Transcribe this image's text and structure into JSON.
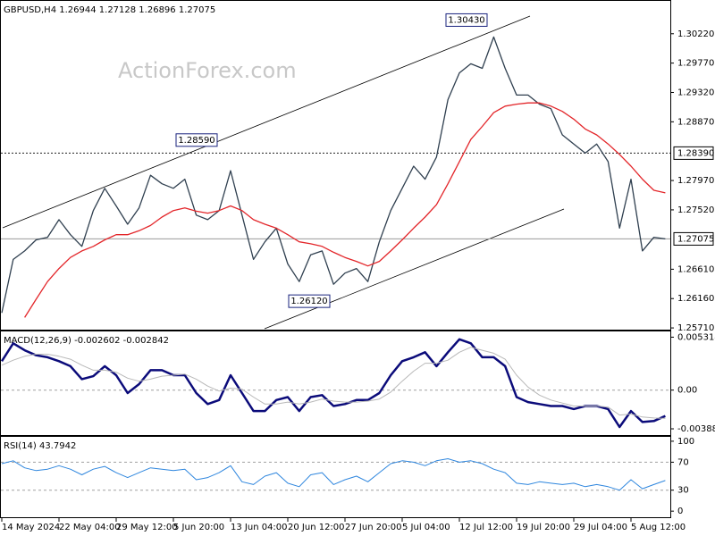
{
  "watermark": "ActionForex.com",
  "chart_data": [
    {
      "type": "line",
      "title": "GBPUSD,H4  1.26944 1.27128 1.26896 1.27075",
      "categories": [
        "14 May 2024",
        null,
        null,
        null,
        null,
        "22 May 04:00",
        null,
        null,
        null,
        null,
        "29 May 12:00",
        null,
        null,
        null,
        null,
        "5 Jun 20:00",
        null,
        null,
        null,
        null,
        "13 Jun 04:00",
        null,
        null,
        null,
        null,
        "20 Jun 12:00",
        null,
        null,
        null,
        null,
        "27 Jun 20:00",
        null,
        null,
        null,
        null,
        "5 Jul 04:00",
        null,
        null,
        null,
        null,
        "12 Jul 12:00",
        null,
        null,
        null,
        null,
        "19 Jul 20:00",
        null,
        null,
        null,
        null,
        "29 Jul 04:00",
        null,
        null,
        null,
        null,
        "5 Aug 12:00",
        null,
        null,
        null
      ],
      "series": [
        {
          "color": "#2f3f4f",
          "values": [
            1.2594,
            1.2676,
            1.2689,
            1.2706,
            1.271,
            1.2737,
            1.2714,
            1.2696,
            1.2751,
            1.2785,
            1.2758,
            1.273,
            1.2755,
            1.2805,
            1.2792,
            1.2785,
            1.2799,
            1.2744,
            1.2737,
            1.2751,
            1.2812,
            1.2744,
            1.2676,
            1.2703,
            1.2724,
            1.2669,
            1.2642,
            1.2683,
            1.2689,
            1.2638,
            1.2655,
            1.2662,
            1.2642,
            1.2703,
            1.2751,
            1.2785,
            1.2819,
            1.2799,
            1.2833,
            1.2921,
            1.2962,
            1.2976,
            1.2969,
            1.3017,
            1.2969,
            1.2928,
            1.2928,
            1.2914,
            1.2907,
            1.2867,
            1.2853,
            1.2839,
            1.2853,
            1.2826,
            1.2724,
            1.2799,
            1.2689,
            1.271,
            1.27075
          ]
        },
        {
          "color": "#e3262a",
          "values": [
            null,
            null,
            1.2587,
            1.2615,
            1.2642,
            1.2662,
            1.2679,
            1.2689,
            1.2696,
            1.2706,
            1.2714,
            1.2714,
            1.272,
            1.2728,
            1.2741,
            1.2751,
            1.2755,
            1.275,
            1.2747,
            1.2751,
            1.2758,
            1.2751,
            1.2737,
            1.273,
            1.2724,
            1.2714,
            1.2703,
            1.27,
            1.2696,
            1.2687,
            1.2679,
            1.2673,
            1.2666,
            1.2673,
            1.2689,
            1.2706,
            1.2724,
            1.2741,
            1.276,
            1.2792,
            1.2826,
            1.286,
            1.288,
            1.2901,
            1.2911,
            1.2914,
            1.2916,
            1.2916,
            1.2911,
            1.2903,
            1.2891,
            1.2876,
            1.2867,
            1.2853,
            1.2837,
            1.2819,
            1.2799,
            1.2782,
            1.2778
          ]
        }
      ],
      "ylim": [
        1.2567,
        1.3071
      ],
      "yticks": [
        {
          "value": 1.3022,
          "label": "1.30220"
        },
        {
          "value": 1.2977,
          "label": "1.29770"
        },
        {
          "value": 1.2932,
          "label": "1.29320"
        },
        {
          "value": 1.2887,
          "label": "1.28870"
        },
        {
          "value": 1.2797,
          "label": "1.27970"
        },
        {
          "value": 1.2752,
          "label": "1.27520"
        },
        {
          "value": 1.2661,
          "label": "1.26610"
        },
        {
          "value": 1.2616,
          "label": "1.26160"
        },
        {
          "value": 1.2571,
          "label": "1.25710"
        }
      ],
      "price_lines": [
        {
          "value": 1.2839,
          "label": "1.28390",
          "style": "dotted"
        },
        {
          "value": 1.27075,
          "label": "1.27075",
          "style": "solid"
        }
      ],
      "annotations": [
        {
          "value": 1.3043,
          "label": "1.30430"
        },
        {
          "value": 1.2859,
          "label": "1.28590"
        },
        {
          "value": 1.2612,
          "label": "1.26120"
        }
      ]
    },
    {
      "type": "line",
      "title": "MACD(12,26,9) -0.002602 -0.002842",
      "series": [
        {
          "color": "#0b0b7a",
          "width": 2.5,
          "values": [
            0.0029,
            0.0047,
            0.004,
            0.0035,
            0.0033,
            0.0029,
            0.0024,
            0.0011,
            0.0014,
            0.0024,
            0.0015,
            -0.0003,
            0.0006,
            0.002,
            0.002,
            0.0015,
            0.0015,
            -0.0003,
            -0.0014,
            -0.001,
            0.0015,
            -0.0003,
            -0.0021,
            -0.0021,
            -0.001,
            -0.0007,
            -0.0021,
            -0.0007,
            -0.0005,
            -0.0016,
            -0.0014,
            -0.001,
            -0.001,
            -0.0003,
            0.0015,
            0.0029,
            0.0033,
            0.0038,
            0.0024,
            0.0038,
            0.0051,
            0.0047,
            0.0033,
            0.0033,
            0.0024,
            -0.0007,
            -0.0012,
            -0.0014,
            -0.0016,
            -0.0016,
            -0.0019,
            -0.0016,
            -0.0016,
            -0.0019,
            -0.0037,
            -0.0021,
            -0.0032,
            -0.0031,
            -0.002602
          ]
        },
        {
          "color": "#b8b8b8",
          "width": 1,
          "values": [
            0.0025,
            0.003,
            0.0034,
            0.0036,
            0.0036,
            0.0034,
            0.0031,
            0.0025,
            0.002,
            0.002,
            0.0018,
            0.0012,
            0.0009,
            0.0011,
            0.0014,
            0.0015,
            0.0016,
            0.0011,
            0.0004,
            -0.0001,
            0.0002,
            0.0001,
            -0.0007,
            -0.0014,
            -0.0014,
            -0.0012,
            -0.0014,
            -0.0012,
            -0.0009,
            -0.0011,
            -0.0012,
            -0.0012,
            -0.0011,
            -0.0009,
            -0.0002,
            0.0009,
            0.0019,
            0.0027,
            0.0027,
            0.003,
            0.0038,
            0.0043,
            0.004,
            0.0037,
            0.0031,
            0.0015,
            0.0003,
            -0.0005,
            -0.001,
            -0.0013,
            -0.0016,
            -0.0016,
            -0.0016,
            -0.0017,
            -0.0025,
            -0.0024,
            -0.0027,
            -0.0028,
            -0.002842
          ]
        }
      ],
      "ylim": [
        -0.0046,
        0.0058
      ],
      "yticks": [
        0.005314,
        {
          "value": 0,
          "label": "0.00"
        },
        -0.003885
      ],
      "levels": [
        0
      ]
    },
    {
      "type": "line",
      "title": "RSI(14) 43.7942",
      "series": [
        {
          "color": "#2e86de",
          "width": 1,
          "values": [
            68,
            72,
            62,
            58,
            60,
            65,
            60,
            52,
            60,
            64,
            55,
            48,
            55,
            62,
            60,
            58,
            60,
            45,
            48,
            55,
            65,
            42,
            38,
            50,
            55,
            40,
            35,
            52,
            55,
            38,
            45,
            50,
            42,
            55,
            68,
            72,
            70,
            65,
            72,
            75,
            70,
            72,
            68,
            60,
            55,
            40,
            38,
            42,
            40,
            38,
            40,
            35,
            38,
            35,
            30,
            45,
            32,
            38,
            43.7942
          ]
        }
      ],
      "ylim": [
        -10,
        105
      ],
      "yticks": [
        100,
        70,
        30,
        0
      ],
      "levels": [
        70,
        30
      ]
    }
  ]
}
